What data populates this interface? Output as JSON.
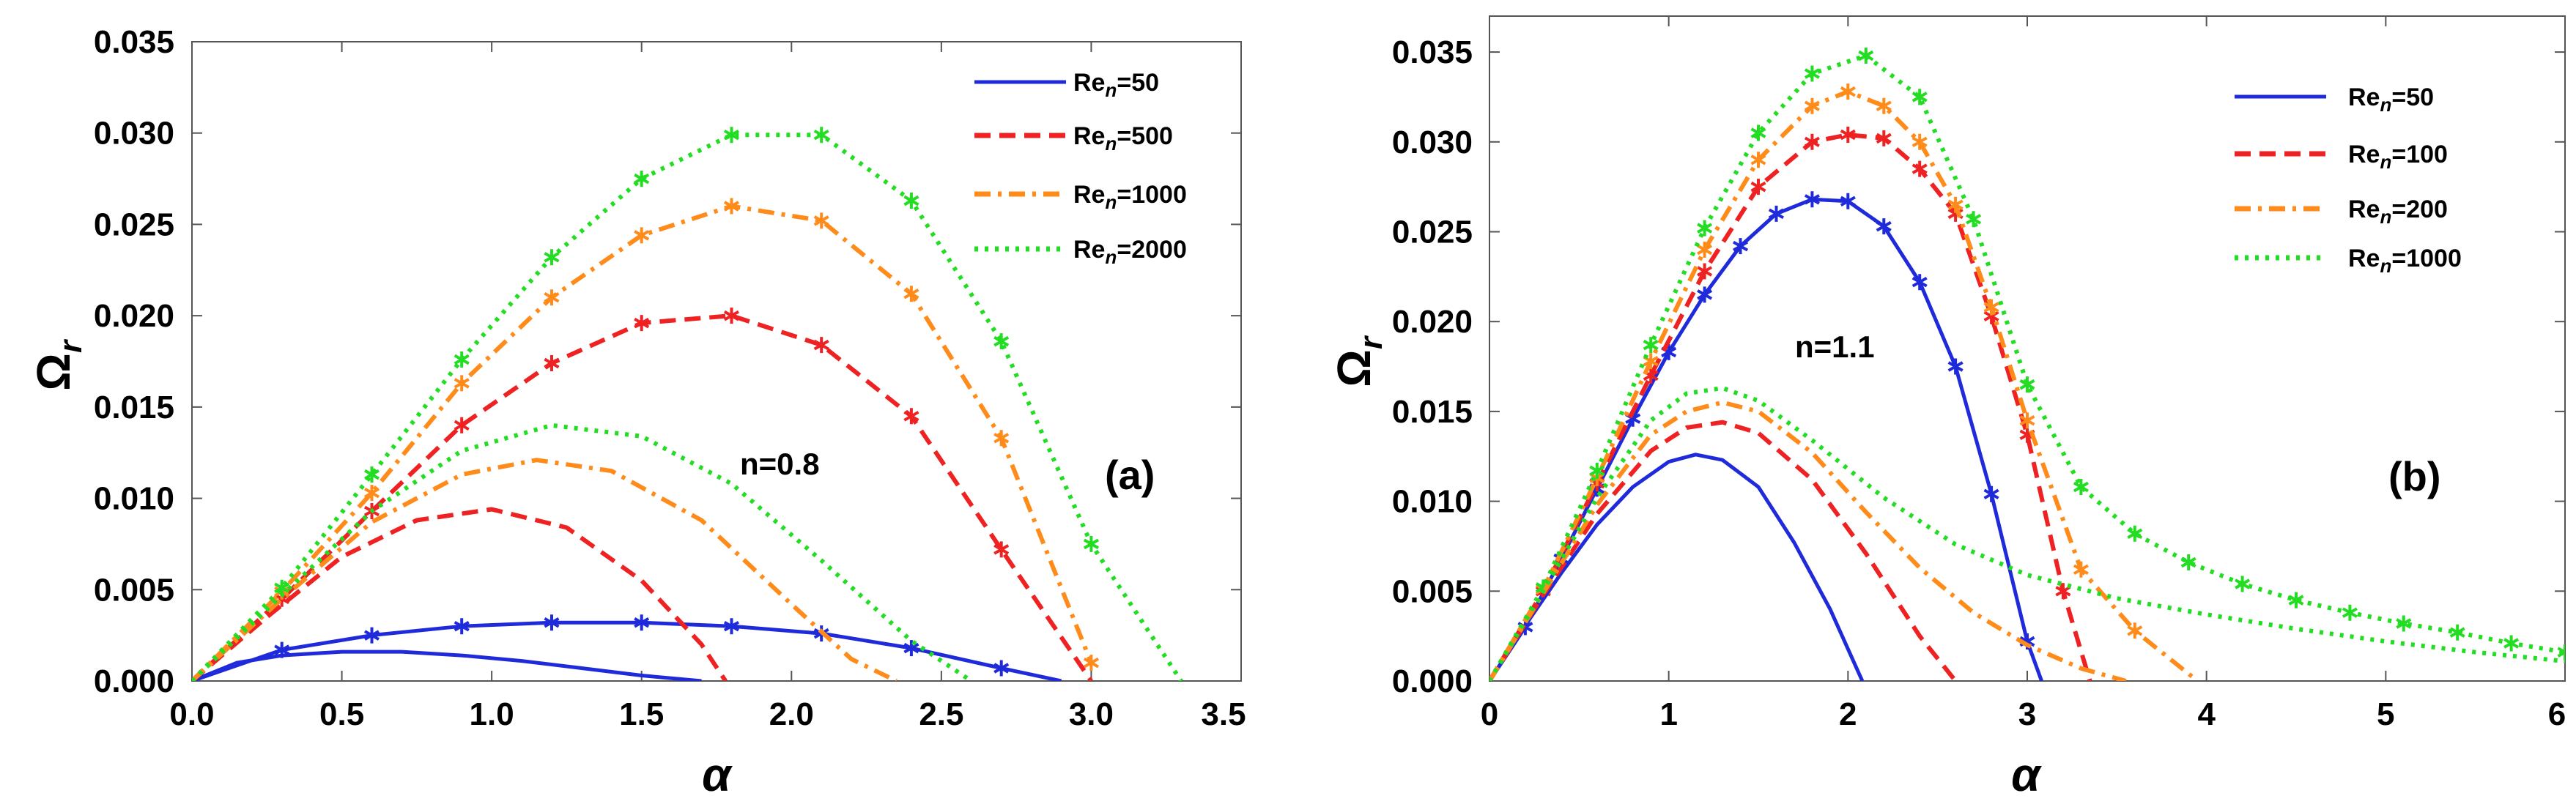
{
  "chart_data": [
    {
      "type": "line",
      "panel_label": "(a)",
      "annotation": "n=0.8",
      "xlabel": "α",
      "ylabel_main": "Ω",
      "ylabel_sub": "r",
      "xlim": [
        0,
        3.5
      ],
      "ylim": [
        0,
        0.035
      ],
      "xticks": [
        "0.0",
        "0.5",
        "1.0",
        "1.5",
        "2.0",
        "2.5",
        "3.0",
        "3.5"
      ],
      "yticks": [
        "0.000",
        "0.005",
        "0.010",
        "0.015",
        "0.020",
        "0.025",
        "0.030",
        "0.035"
      ],
      "legend": [
        {
          "base": "Re",
          "sub": "n",
          "rest": "=50",
          "color": "#1f2bdb",
          "dash": "solid"
        },
        {
          "base": "Re",
          "sub": "n",
          "rest": "=500",
          "color": "#ee2222",
          "dash": "dash"
        },
        {
          "base": "Re",
          "sub": "n",
          "rest": "=1000",
          "color": "#ff8c1a",
          "dash": "dashdot"
        },
        {
          "base": "Re",
          "sub": "n",
          "rest": "=2000",
          "color": "#22dd22",
          "dash": "dot"
        }
      ],
      "series": [
        {
          "name": "Re_n=50 (starred)",
          "color": "#1f2bdb",
          "dash": "solid",
          "markers": true,
          "x": [
            0,
            0.3,
            0.6,
            0.9,
            1.2,
            1.5,
            1.8,
            2.1,
            2.4,
            2.7,
            2.9
          ],
          "y": [
            0,
            0.0017,
            0.0025,
            0.003,
            0.0032,
            0.0032,
            0.003,
            0.0026,
            0.0018,
            0.0007,
            0
          ]
        },
        {
          "name": "Re_n=500 (starred)",
          "color": "#ee2222",
          "dash": "dash",
          "markers": true,
          "x": [
            0,
            0.3,
            0.6,
            0.9,
            1.2,
            1.5,
            1.8,
            2.1,
            2.4,
            2.7,
            3.0
          ],
          "y": [
            0,
            0.0045,
            0.0093,
            0.014,
            0.0174,
            0.0196,
            0.02,
            0.0184,
            0.0145,
            0.0072,
            0
          ]
        },
        {
          "name": "Re_n=1000 (starred)",
          "color": "#ff8c1a",
          "dash": "dashdot",
          "markers": true,
          "x": [
            0,
            0.3,
            0.6,
            0.9,
            1.2,
            1.5,
            1.8,
            2.1,
            2.4,
            2.7,
            3.0
          ],
          "y": [
            0,
            0.0049,
            0.0103,
            0.0163,
            0.021,
            0.0244,
            0.026,
            0.0252,
            0.0212,
            0.0133,
            0.001
          ]
        },
        {
          "name": "Re_n=2000 (starred)",
          "color": "#22dd22",
          "dash": "dot",
          "markers": true,
          "x": [
            0,
            0.3,
            0.6,
            0.9,
            1.2,
            1.5,
            1.8,
            2.1,
            2.4,
            2.7,
            3.0,
            3.3
          ],
          "y": [
            0,
            0.0051,
            0.0113,
            0.0176,
            0.0232,
            0.0275,
            0.0299,
            0.0299,
            0.0263,
            0.0186,
            0.0075,
            0
          ]
        },
        {
          "name": "Re_n=50",
          "color": "#1f2bdb",
          "dash": "solid",
          "markers": false,
          "x": [
            0,
            0.15,
            0.3,
            0.5,
            0.7,
            0.9,
            1.1,
            1.3,
            1.5,
            1.7
          ],
          "y": [
            0,
            0.001,
            0.0014,
            0.0016,
            0.0016,
            0.0014,
            0.0011,
            0.0007,
            0.0003,
            0
          ]
        },
        {
          "name": "Re_n=500",
          "color": "#ee2222",
          "dash": "dash",
          "markers": false,
          "x": [
            0,
            0.25,
            0.5,
            0.75,
            1.0,
            1.25,
            1.5,
            1.7,
            1.78
          ],
          "y": [
            0,
            0.0035,
            0.0068,
            0.0088,
            0.0094,
            0.0084,
            0.0055,
            0.002,
            0
          ]
        },
        {
          "name": "Re_n=1000",
          "color": "#ff8c1a",
          "dash": "dashdot",
          "markers": false,
          "x": [
            0,
            0.3,
            0.6,
            0.9,
            1.15,
            1.4,
            1.7,
            2.0,
            2.2,
            2.35
          ],
          "y": [
            0,
            0.0045,
            0.0087,
            0.0113,
            0.0121,
            0.0115,
            0.0088,
            0.0042,
            0.0012,
            0
          ]
        },
        {
          "name": "Re_n=2000",
          "color": "#22dd22",
          "dash": "dot",
          "markers": false,
          "x": [
            0,
            0.3,
            0.6,
            0.9,
            1.2,
            1.5,
            1.8,
            2.1,
            2.4,
            2.6
          ],
          "y": [
            0,
            0.0047,
            0.0093,
            0.0126,
            0.014,
            0.0134,
            0.0108,
            0.0066,
            0.0022,
            0
          ]
        }
      ]
    },
    {
      "type": "line",
      "panel_label": "(b)",
      "annotation": "n=1.1",
      "xlabel": "α",
      "ylabel_main": "Ω",
      "ylabel_sub": "r",
      "xlim": [
        0,
        6
      ],
      "ylim": [
        0,
        0.037
      ],
      "xticks": [
        "0",
        "1",
        "2",
        "3",
        "4",
        "5",
        "6"
      ],
      "xtick_values": [
        0,
        1,
        2,
        3,
        4,
        5,
        6
      ],
      "yticks": [
        "0.000",
        "0.005",
        "0.010",
        "0.015",
        "0.020",
        "0.025",
        "0.030",
        "0.035"
      ],
      "legend": [
        {
          "base": "Re",
          "sub": "n",
          "rest": "=50",
          "color": "#1f2bdb",
          "dash": "solid"
        },
        {
          "base": "Re",
          "sub": "n",
          "rest": "=100",
          "color": "#ee2222",
          "dash": "dash"
        },
        {
          "base": "Re",
          "sub": "n",
          "rest": "=200",
          "color": "#ff8c1a",
          "dash": "dashdot"
        },
        {
          "base": "Re",
          "sub": "n",
          "rest": "=1000",
          "color": "#22dd22",
          "dash": "dot"
        }
      ],
      "series": [
        {
          "name": "Re_n=50 (starred)",
          "color": "#1f2bdb",
          "dash": "solid",
          "markers": true,
          "x": [
            0,
            0.2,
            0.4,
            0.6,
            0.8,
            1.0,
            1.2,
            1.4,
            1.6,
            1.8,
            2.0,
            2.2,
            2.4,
            2.6,
            2.8,
            3.0,
            3.08
          ],
          "y": [
            0,
            0.003,
            0.0068,
            0.0107,
            0.0146,
            0.0183,
            0.0215,
            0.0242,
            0.026,
            0.0268,
            0.0267,
            0.0253,
            0.0222,
            0.0175,
            0.0104,
            0.0022,
            0
          ]
        },
        {
          "name": "Re_n=100 (starred)",
          "color": "#ee2222",
          "dash": "dash",
          "markers": true,
          "x": [
            0,
            0.3,
            0.6,
            0.9,
            1.2,
            1.5,
            1.8,
            2.0,
            2.2,
            2.4,
            2.6,
            2.8,
            3.0,
            3.2,
            3.35
          ],
          "y": [
            0,
            0.005,
            0.011,
            0.017,
            0.0228,
            0.0275,
            0.03,
            0.0304,
            0.0302,
            0.0285,
            0.026,
            0.0203,
            0.0137,
            0.005,
            0
          ]
        },
        {
          "name": "Re_n=200 (starred)",
          "color": "#ff8c1a",
          "dash": "dashdot",
          "markers": true,
          "x": [
            0,
            0.3,
            0.6,
            0.9,
            1.2,
            1.5,
            1.8,
            2.0,
            2.2,
            2.4,
            2.6,
            2.8,
            3.0,
            3.3,
            3.6,
            3.95
          ],
          "y": [
            0,
            0.0051,
            0.0113,
            0.0178,
            0.024,
            0.029,
            0.032,
            0.0328,
            0.032,
            0.03,
            0.0265,
            0.0208,
            0.0145,
            0.0062,
            0.0028,
            0
          ]
        },
        {
          "name": "Re_n=1000 (starred)",
          "color": "#22dd22",
          "dash": "dot",
          "markers": true,
          "x": [
            0,
            0.3,
            0.6,
            0.9,
            1.2,
            1.5,
            1.8,
            2.1,
            2.4,
            2.7,
            3.0,
            3.3,
            3.6,
            3.9,
            4.2,
            4.5,
            4.8,
            5.1,
            5.4,
            5.7,
            6.0
          ],
          "y": [
            0,
            0.0052,
            0.0117,
            0.0187,
            0.0252,
            0.0305,
            0.0338,
            0.0348,
            0.0325,
            0.0257,
            0.0165,
            0.0108,
            0.0082,
            0.0066,
            0.0054,
            0.0045,
            0.0038,
            0.0032,
            0.0027,
            0.0021,
            0.0016
          ]
        },
        {
          "name": "Re_n=50",
          "color": "#1f2bdb",
          "dash": "solid",
          "markers": false,
          "x": [
            0,
            0.2,
            0.4,
            0.6,
            0.8,
            1.0,
            1.15,
            1.3,
            1.5,
            1.7,
            1.9,
            2.08
          ],
          "y": [
            0,
            0.0031,
            0.006,
            0.0087,
            0.0108,
            0.0122,
            0.0126,
            0.0123,
            0.0108,
            0.0077,
            0.004,
            0
          ]
        },
        {
          "name": "Re_n=100",
          "color": "#ee2222",
          "dash": "dash",
          "markers": false,
          "x": [
            0,
            0.3,
            0.6,
            0.9,
            1.1,
            1.3,
            1.5,
            1.8,
            2.1,
            2.4,
            2.6
          ],
          "y": [
            0,
            0.0048,
            0.0093,
            0.0128,
            0.0141,
            0.0144,
            0.0138,
            0.0112,
            0.0071,
            0.0025,
            0
          ]
        },
        {
          "name": "Re_n=200",
          "color": "#ff8c1a",
          "dash": "dashdot",
          "markers": false,
          "x": [
            0,
            0.3,
            0.6,
            0.9,
            1.1,
            1.3,
            1.5,
            1.8,
            2.1,
            2.4,
            2.7,
            3.0,
            3.3,
            3.55
          ],
          "y": [
            0,
            0.0049,
            0.0098,
            0.0137,
            0.015,
            0.0155,
            0.015,
            0.0127,
            0.0094,
            0.0063,
            0.0038,
            0.002,
            0.0007,
            0
          ]
        },
        {
          "name": "Re_n=1000",
          "color": "#22dd22",
          "dash": "dot",
          "markers": false,
          "x": [
            0,
            0.3,
            0.6,
            0.9,
            1.1,
            1.3,
            1.5,
            1.8,
            2.2,
            2.6,
            3.0,
            3.5,
            4.0,
            4.5,
            5.0,
            5.5,
            6.0
          ],
          "y": [
            0,
            0.005,
            0.0102,
            0.0145,
            0.016,
            0.0163,
            0.0156,
            0.0134,
            0.0102,
            0.0076,
            0.0059,
            0.0046,
            0.0037,
            0.0029,
            0.0022,
            0.0016,
            0.0011
          ]
        }
      ]
    }
  ]
}
